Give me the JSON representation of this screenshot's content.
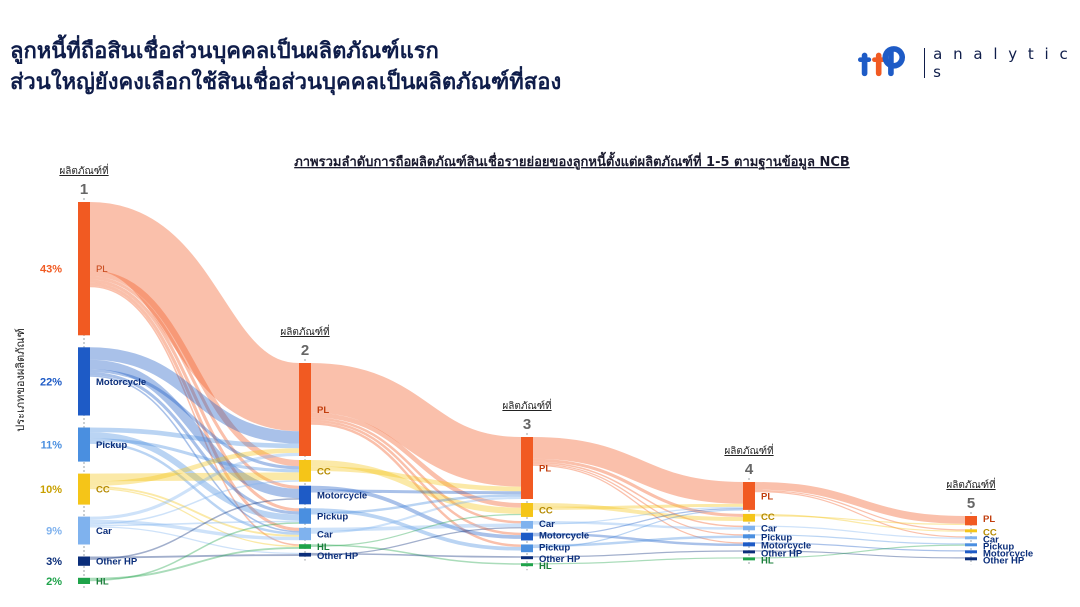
{
  "header": {
    "title_line1": "ลูกหนี้ที่ถือสินเชื่อส่วนบุคคลเป็นผลิตภัณฑ์แรก",
    "title_line2": "ส่วนใหญ่ยังคงเลือกใช้สินเชื่อส่วนบุคคลเป็นผลิตภัณฑ์ที่สอง",
    "logo_text": "ttb",
    "logo_word": "a n a l y t i c s"
  },
  "colors": {
    "PL": "#f15a22",
    "Motorcycle": "#1e5bc6",
    "Pickup": "#4a8fe0",
    "CC": "#f5c518",
    "Car": "#7fb2ee",
    "Other HP": "#0b2e7a",
    "HL": "#1fa34a"
  },
  "chart_data": {
    "type": "sankey",
    "title": "ภาพรวมลำดับการถือผลิตภัณฑ์สินเชื่อรายย่อยของลูกหนี้ตั้งแต่ผลิตภัณฑ์ที่ 1-5 ตามฐานข้อมูล NCB",
    "ylabel": "ประเภทของผลิตภัณฑ์",
    "stage_label": "ผลิตภัณฑ์ที่",
    "stages": [
      {
        "number": "1",
        "nodes": [
          {
            "name": "PL",
            "pct": "43%",
            "value": 43
          },
          {
            "name": "Motorcycle",
            "pct": "22%",
            "value": 22
          },
          {
            "name": "Pickup",
            "pct": "11%",
            "value": 11
          },
          {
            "name": "CC",
            "pct": "10%",
            "value": 10
          },
          {
            "name": "Car",
            "pct": "9%",
            "value": 9
          },
          {
            "name": "Other HP",
            "pct": "3%",
            "value": 3
          },
          {
            "name": "HL",
            "pct": "2%",
            "value": 2
          }
        ]
      },
      {
        "number": "2",
        "nodes": [
          {
            "name": "PL",
            "value": 30
          },
          {
            "name": "CC",
            "value": 7
          },
          {
            "name": "Motorcycle",
            "value": 6
          },
          {
            "name": "Pickup",
            "value": 5
          },
          {
            "name": "Car",
            "value": 4
          },
          {
            "name": "HL",
            "value": 1.5
          },
          {
            "name": "Other HP",
            "value": 1.2
          }
        ]
      },
      {
        "number": "3",
        "nodes": [
          {
            "name": "PL",
            "value": 20
          },
          {
            "name": "CC",
            "value": 4.5
          },
          {
            "name": "Car",
            "value": 2.5
          },
          {
            "name": "Motorcycle",
            "value": 2.5
          },
          {
            "name": "Pickup",
            "value": 2.5
          },
          {
            "name": "Other HP",
            "value": 0.8
          },
          {
            "name": "HL",
            "value": 0.6
          }
        ]
      },
      {
        "number": "4",
        "nodes": [
          {
            "name": "PL",
            "value": 9
          },
          {
            "name": "CC",
            "value": 2.5
          },
          {
            "name": "Car",
            "value": 1.5
          },
          {
            "name": "Pickup",
            "value": 1.3
          },
          {
            "name": "Motorcycle",
            "value": 1.3
          },
          {
            "name": "Other HP",
            "value": 0.5
          },
          {
            "name": "HL",
            "value": 0.4
          }
        ]
      },
      {
        "number": "5",
        "nodes": [
          {
            "name": "PL",
            "value": 3
          },
          {
            "name": "CC",
            "value": 0.8
          },
          {
            "name": "Car",
            "value": 0.5
          },
          {
            "name": "Pickup",
            "value": 0.5
          },
          {
            "name": "Motorcycle",
            "value": 0.5
          },
          {
            "name": "Other HP",
            "value": 0.2
          }
        ]
      }
    ],
    "links": [
      [
        {
          "from": "PL",
          "to": "PL",
          "value": 22
        },
        {
          "from": "PL",
          "to": "CC",
          "value": 2
        },
        {
          "from": "PL",
          "to": "Motorcycle",
          "value": 1
        },
        {
          "from": "PL",
          "to": "Pickup",
          "value": 1
        },
        {
          "from": "PL",
          "to": "Car",
          "value": 1
        },
        {
          "from": "PL",
          "to": "HL",
          "value": 0.5
        },
        {
          "from": "Motorcycle",
          "to": "PL",
          "value": 4
        },
        {
          "from": "Motorcycle",
          "to": "Motorcycle",
          "value": 3
        },
        {
          "from": "Motorcycle",
          "to": "CC",
          "value": 1
        },
        {
          "from": "Motorcycle",
          "to": "Pickup",
          "value": 1
        },
        {
          "from": "Motorcycle",
          "to": "Car",
          "value": 0.5
        },
        {
          "from": "Pickup",
          "to": "PL",
          "value": 1.5
        },
        {
          "from": "Pickup",
          "to": "Pickup",
          "value": 2
        },
        {
          "from": "Pickup",
          "to": "CC",
          "value": 1
        },
        {
          "from": "Pickup",
          "to": "Car",
          "value": 0.8
        },
        {
          "from": "CC",
          "to": "CC",
          "value": 2.5
        },
        {
          "from": "CC",
          "to": "PL",
          "value": 1.5
        },
        {
          "from": "CC",
          "to": "Car",
          "value": 0.6
        },
        {
          "from": "CC",
          "to": "HL",
          "value": 0.4
        },
        {
          "from": "Car",
          "to": "PL",
          "value": 1
        },
        {
          "from": "Car",
          "to": "Car",
          "value": 1.1
        },
        {
          "from": "Car",
          "to": "CC",
          "value": 0.5
        },
        {
          "from": "Car",
          "to": "Pickup",
          "value": 0.5
        },
        {
          "from": "Car",
          "to": "Other HP",
          "value": 0.4
        },
        {
          "from": "Other HP",
          "to": "Other HP",
          "value": 0.6
        },
        {
          "from": "Other HP",
          "to": "Motorcycle",
          "value": 0.5
        },
        {
          "from": "HL",
          "to": "HL",
          "value": 0.6
        },
        {
          "from": "HL",
          "to": "Pickup",
          "value": 0.5
        }
      ],
      [
        {
          "from": "PL",
          "to": "PL",
          "value": 16
        },
        {
          "from": "PL",
          "to": "CC",
          "value": 1.5
        },
        {
          "from": "PL",
          "to": "Car",
          "value": 0.8
        },
        {
          "from": "PL",
          "to": "Motorcycle",
          "value": 0.8
        },
        {
          "from": "PL",
          "to": "Pickup",
          "value": 0.8
        },
        {
          "from": "CC",
          "to": "CC",
          "value": 2
        },
        {
          "from": "CC",
          "to": "PL",
          "value": 1.5
        },
        {
          "from": "Motorcycle",
          "to": "Motorcycle",
          "value": 1.2
        },
        {
          "from": "Motorcycle",
          "to": "PL",
          "value": 1
        },
        {
          "from": "Pickup",
          "to": "Pickup",
          "value": 1.2
        },
        {
          "from": "Pickup",
          "to": "PL",
          "value": 0.8
        },
        {
          "from": "Car",
          "to": "Car",
          "value": 1.2
        },
        {
          "from": "Car",
          "to": "PL",
          "value": 0.7
        },
        {
          "from": "HL",
          "to": "HL",
          "value": 0.5
        },
        {
          "from": "HL",
          "to": "CC",
          "value": 0.4
        },
        {
          "from": "Other HP",
          "to": "Other HP",
          "value": 0.5
        },
        {
          "from": "Other HP",
          "to": "Car",
          "value": 0.3
        }
      ],
      [
        {
          "from": "PL",
          "to": "PL",
          "value": 7
        },
        {
          "from": "PL",
          "to": "CC",
          "value": 1
        },
        {
          "from": "PL",
          "to": "Car",
          "value": 0.5
        },
        {
          "from": "PL",
          "to": "Pickup",
          "value": 0.4
        },
        {
          "from": "PL",
          "to": "Motorcycle",
          "value": 0.4
        },
        {
          "from": "CC",
          "to": "CC",
          "value": 1.3
        },
        {
          "from": "CC",
          "to": "PL",
          "value": 1
        },
        {
          "from": "Car",
          "to": "Car",
          "value": 0.8
        },
        {
          "from": "Car",
          "to": "PL",
          "value": 0.4
        },
        {
          "from": "Motorcycle",
          "to": "Motorcycle",
          "value": 0.8
        },
        {
          "from": "Motorcycle",
          "to": "PL",
          "value": 0.4
        },
        {
          "from": "Pickup",
          "to": "Pickup",
          "value": 0.8
        },
        {
          "from": "Pickup",
          "to": "PL",
          "value": 0.3
        },
        {
          "from": "Other HP",
          "to": "Other HP",
          "value": 0.4
        },
        {
          "from": "HL",
          "to": "HL",
          "value": 0.3
        }
      ],
      [
        {
          "from": "PL",
          "to": "PL",
          "value": 2.5
        },
        {
          "from": "PL",
          "to": "CC",
          "value": 0.4
        },
        {
          "from": "PL",
          "to": "Car",
          "value": 0.2
        },
        {
          "from": "CC",
          "to": "CC",
          "value": 0.4
        },
        {
          "from": "CC",
          "to": "PL",
          "value": 0.3
        },
        {
          "from": "Car",
          "to": "Car",
          "value": 0.3
        },
        {
          "from": "Pickup",
          "to": "Pickup",
          "value": 0.4
        },
        {
          "from": "Motorcycle",
          "to": "Motorcycle",
          "value": 0.4
        },
        {
          "from": "Other HP",
          "to": "Other HP",
          "value": 0.2
        },
        {
          "from": "HL",
          "to": "Pickup",
          "value": 0.1
        }
      ]
    ]
  }
}
